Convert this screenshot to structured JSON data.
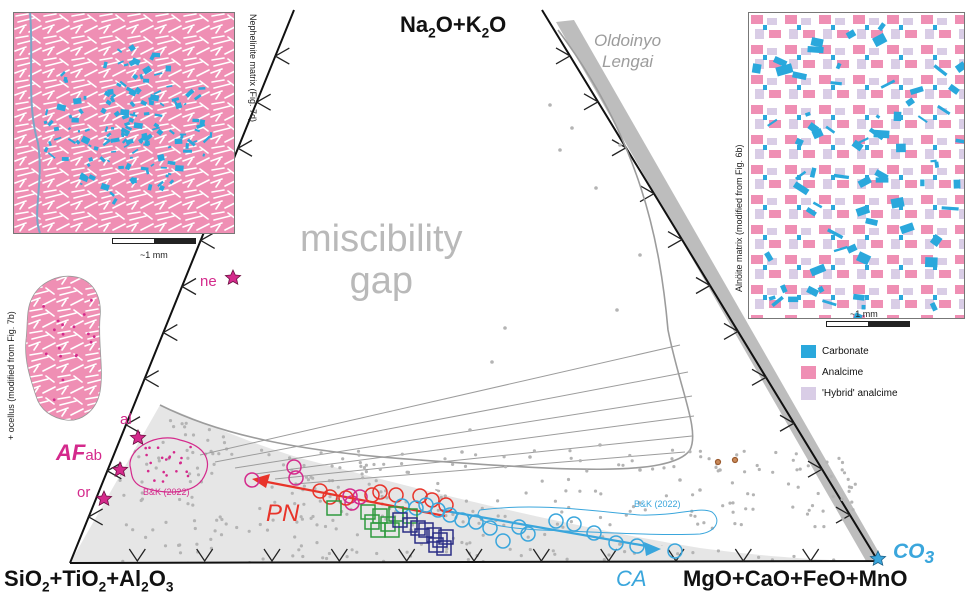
{
  "apices": {
    "top": "Na2O+K2O",
    "left": "SiO2+TiO2+Al2O3",
    "right": "MgO+CaO+FeO+MnO"
  },
  "labels": {
    "oldoinyo_line1": "Oldoinyo",
    "oldoinyo_line2": "Lengai",
    "miscibility_line1": "miscibility",
    "miscibility_line2": "gap",
    "ne": "ne",
    "al": "al",
    "af": "AF",
    "af_sub": "ab",
    "or": "or",
    "bk_left": "B&K (2022)",
    "bk_right": "B&K (2022)",
    "pn": "PN",
    "ca": "CA",
    "co3": "CO3"
  },
  "insets": {
    "nephelinite_caption": "Nephelinite matrix (Fig. 7d)",
    "nephelinite_scale": "~1 mm",
    "ocellus_caption": "+ ocellus (modified from Fig. 7b)",
    "alnoite_caption": "Alnöite matrix (modified from Fig. 6b)",
    "alnoite_scale": "~1 mm"
  },
  "legend": [
    {
      "label": "Carbonate",
      "color": "#2aa8dc"
    },
    {
      "label": "Analcime",
      "color": "#ef8fb4"
    },
    {
      "label": "'Hybrid' analcime",
      "color": "#d9cde6"
    }
  ],
  "colors": {
    "carbonate": "#2aa8dc",
    "analcime": "#ef8fb4",
    "hybrid": "#d9cde6",
    "magenta": "#d42a8c",
    "red": "#e8342a",
    "green": "#2e9a3e",
    "navy": "#2b2e86",
    "blue": "#3aa6dc",
    "gray_field": "#e6e6e6",
    "gray_dot": "#b4b4b4"
  }
}
